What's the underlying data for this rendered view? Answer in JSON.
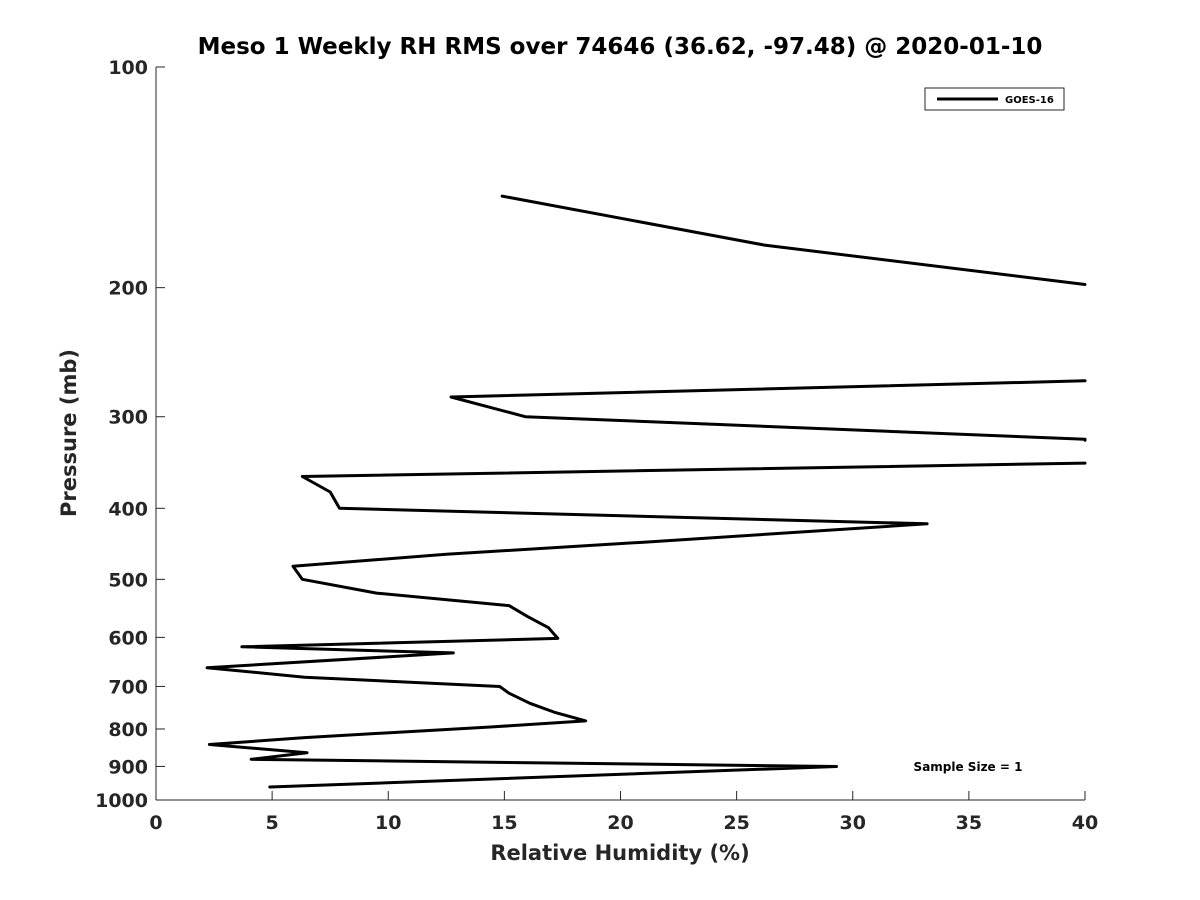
{
  "chart_data": {
    "type": "line",
    "title": "Meso 1 Weekly RH RMS over 74646 (36.62, -97.48) @ 2020-01-10",
    "xlabel": "Relative Humidity (%)",
    "ylabel": "Pressure (mb)",
    "xlim": [
      0,
      40
    ],
    "ylim": [
      100,
      1000
    ],
    "yscale": "log",
    "reverse_y": true,
    "grid": false,
    "legend_position": "top-right",
    "xticks": [
      0,
      5,
      10,
      15,
      20,
      25,
      30,
      35,
      40
    ],
    "xtick_labels": [
      "0",
      "5",
      "10",
      "15",
      "20",
      "25",
      "30",
      "35",
      "40"
    ],
    "yticks": [
      100,
      200,
      300,
      400,
      500,
      600,
      700,
      800,
      900,
      1000
    ],
    "ytick_labels": [
      "100",
      "200",
      "300",
      "400",
      "500",
      "600",
      "700",
      "800",
      "900",
      "1000"
    ],
    "annotation": "Sample Size = 1",
    "color": "#000000",
    "series": [
      {
        "name": "GOES-16",
        "segments": [
          [
            [
              14.9,
              150
            ],
            [
              26.2,
              175
            ],
            [
              40,
              198
            ]
          ],
          [
            [
              40,
              268
            ],
            [
              12.7,
              282
            ],
            [
              15.9,
              300
            ],
            [
              40,
              322
            ],
            [
              40,
              323
            ]
          ],
          [
            [
              40,
              347
            ],
            [
              6.3,
              362
            ],
            [
              7.5,
              380
            ],
            [
              7.9,
              400
            ],
            [
              33.2,
              420
            ],
            [
              21,
              445
            ],
            [
              12.5,
              462
            ],
            [
              5.9,
              480
            ],
            [
              6.3,
              500
            ],
            [
              9.5,
              522
            ],
            [
              15.2,
              543
            ],
            [
              16.0,
              562
            ],
            [
              16.9,
              582
            ],
            [
              17.3,
              602
            ],
            [
              3.7,
              618
            ],
            [
              12.8,
              630
            ],
            [
              2.2,
              660
            ],
            [
              6.4,
              680
            ],
            [
              14.8,
              700
            ],
            [
              15.2,
              715
            ],
            [
              16.1,
              738
            ],
            [
              17.2,
              760
            ],
            [
              18.5,
              780
            ],
            [
              14.4,
              795
            ],
            [
              6.4,
              822
            ],
            [
              2.3,
              840
            ],
            [
              6.5,
              862
            ],
            [
              4.1,
              880
            ],
            [
              29.3,
              900
            ],
            [
              4.9,
              960
            ]
          ]
        ]
      }
    ]
  }
}
